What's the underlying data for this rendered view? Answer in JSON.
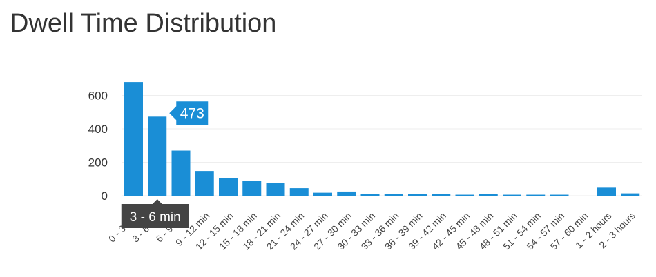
{
  "page": {
    "title": "Dwell Time Distribution"
  },
  "colors": {
    "bar": "#1a8ed6",
    "grid": "#eeeeee",
    "value_tooltip_bg": "#1a8ed6",
    "category_tooltip_bg": "#444444"
  },
  "tooltip": {
    "value": "473",
    "category": "3 - 6 min"
  },
  "chart_data": {
    "type": "bar",
    "title": "Dwell Time Distribution",
    "xlabel": "",
    "ylabel": "",
    "ylim": [
      0,
      650
    ],
    "yticks": [
      0,
      200,
      400,
      600
    ],
    "grid": true,
    "legend": "none",
    "categories": [
      "0 - 3 min",
      "3 - 6 min",
      "6 - 9 min",
      "9 - 12 min",
      "12 - 15 min",
      "15 - 18 min",
      "18 - 21 min",
      "21 - 24 min",
      "24 - 27 min",
      "27 - 30 min",
      "30 - 33 min",
      "33 - 36 min",
      "36 - 39 min",
      "39 - 42 min",
      "42 - 45 min",
      "45 - 48 min",
      "48 - 51 min",
      "51 - 54 min",
      "54 - 57 min",
      "57 - 60 min",
      "1 - 2 hours",
      "2 - 3 hours"
    ],
    "values": [
      680,
      473,
      270,
      148,
      105,
      88,
      75,
      45,
      18,
      25,
      12,
      12,
      12,
      12,
      6,
      12,
      6,
      6,
      6,
      0,
      48,
      14
    ]
  }
}
